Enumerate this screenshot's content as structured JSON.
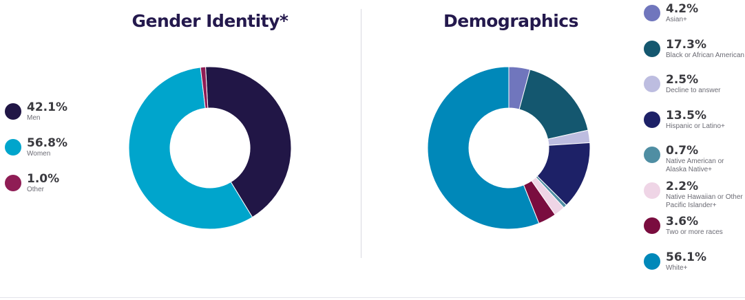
{
  "titles": {
    "gender": "Gender Identity*",
    "demographics": "Demographics"
  },
  "chart_data": [
    {
      "type": "pie",
      "title": "Gender Identity*",
      "categories": [
        "Men",
        "Women",
        "Other"
      ],
      "values": [
        42.1,
        56.8,
        1.0
      ],
      "value_labels": [
        "42.1%",
        "56.8%",
        "1.0%"
      ],
      "colors": [
        "#211646",
        "#00a5cc",
        "#8f1d55"
      ],
      "legend": "left"
    },
    {
      "type": "pie",
      "title": "Demographics",
      "categories": [
        "Asian+",
        "Black or African American",
        "Decline to answer",
        "Hispanic or Latino+",
        "Native American or Alaska Native+",
        "Native Hawaiian or Other Pacific Islander+",
        "Two or more races",
        "White+"
      ],
      "values": [
        4.2,
        17.3,
        2.5,
        13.5,
        0.7,
        2.2,
        3.6,
        56.1
      ],
      "value_labels": [
        "4.2%",
        "17.3%",
        "2.5%",
        "13.5%",
        "0.7%",
        "2.2%",
        "3.6%",
        "56.1%"
      ],
      "colors": [
        "#7076bd",
        "#14576f",
        "#bdbde0",
        "#1d2167",
        "#4f8ea3",
        "#efd5e6",
        "#7a0d3f",
        "#0088b9"
      ],
      "legend": "right"
    }
  ]
}
